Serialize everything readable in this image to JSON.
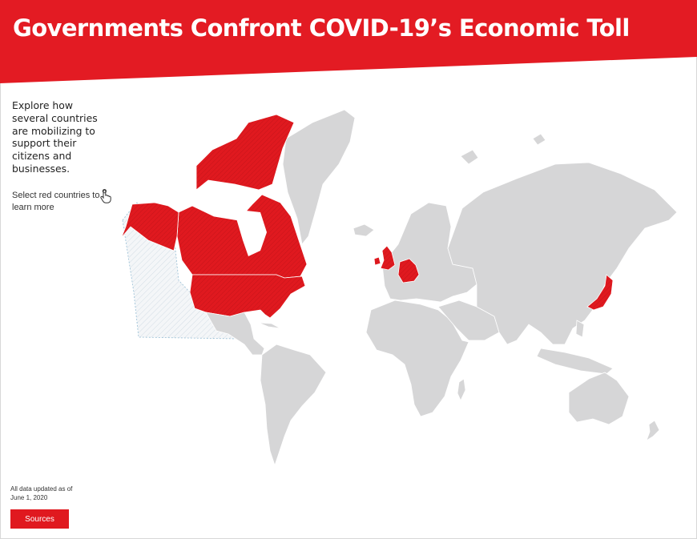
{
  "header": {
    "title": "Governments Confront COVID-19’s Economic Toll"
  },
  "intro": {
    "text": "Explore how several countries are mobilizing to support their citizens and businesses."
  },
  "hint": {
    "label": "Select red countries to learn more",
    "icon": "hand-pointer-icon"
  },
  "map": {
    "highlighted_countries": [
      "Canada",
      "United States",
      "United Kingdom",
      "Germany",
      "Japan"
    ],
    "colors": {
      "highlight": "#e0191f",
      "land": "#d6d6d7",
      "header": "#e31b23",
      "background": "#ffffff"
    }
  },
  "footer": {
    "updated_text": "All data updated as of June 1, 2020",
    "sources_label": "Sources"
  }
}
